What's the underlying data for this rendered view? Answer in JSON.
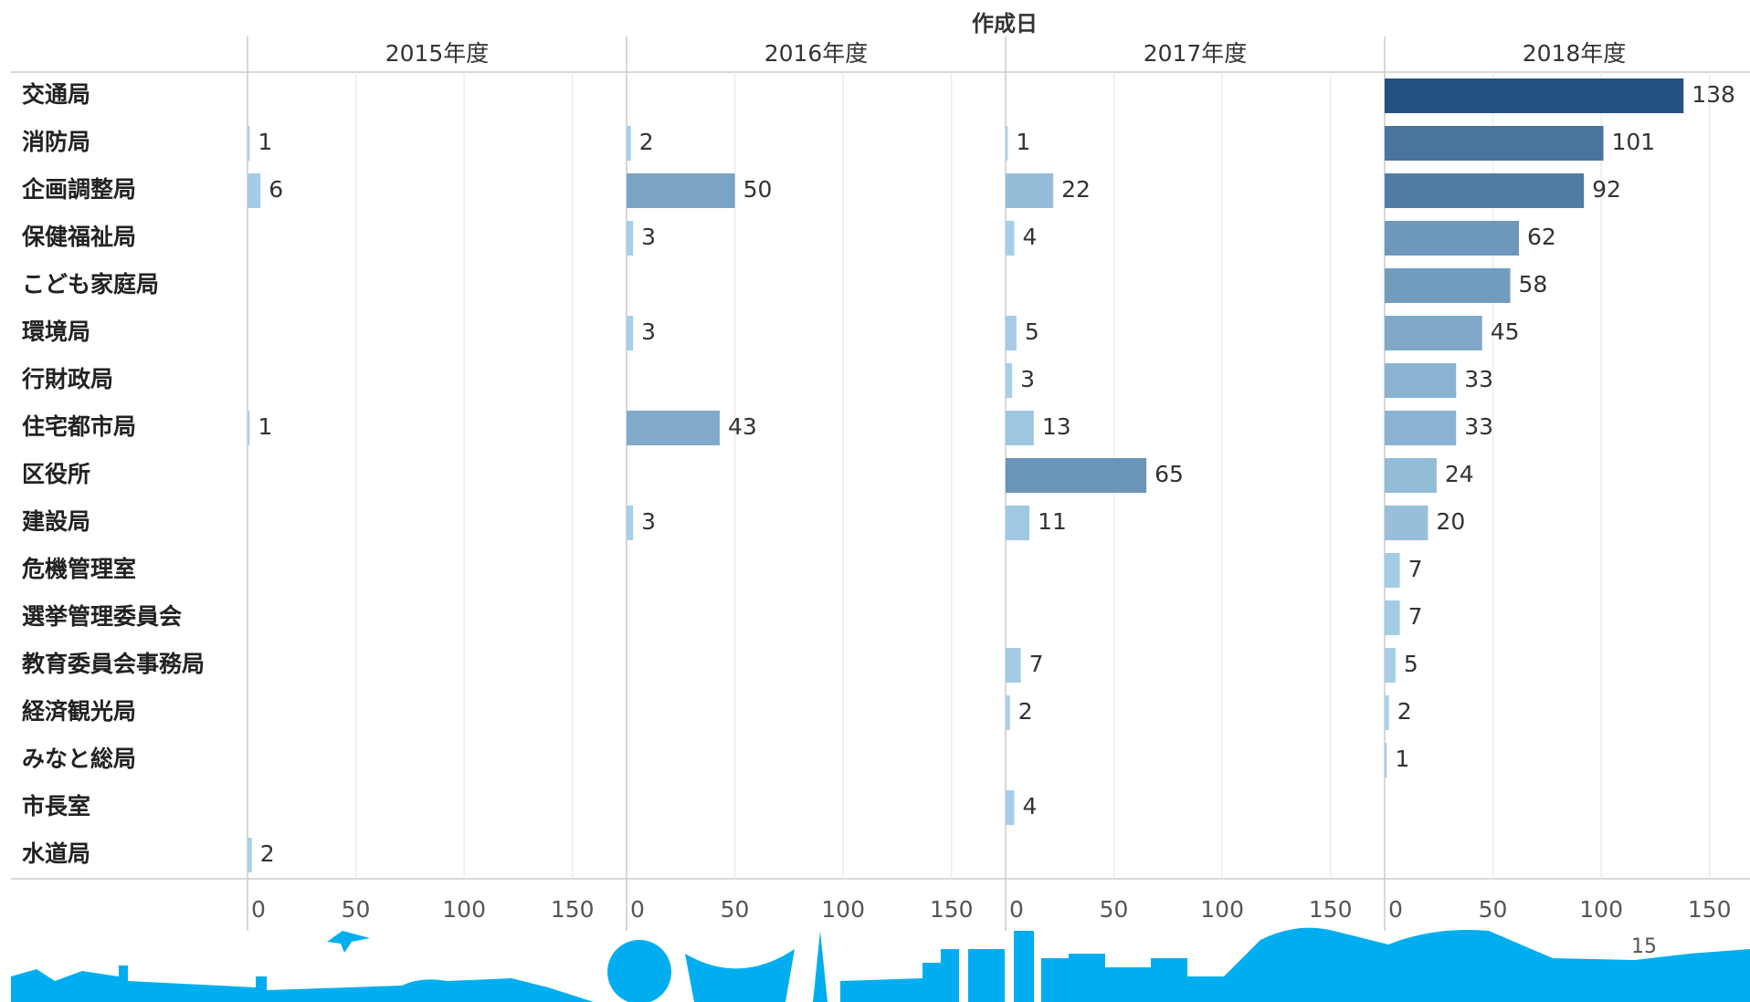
{
  "chart_data": {
    "type": "bar",
    "orientation": "horizontal",
    "title": "作成日",
    "categories": [
      "交通局",
      "消防局",
      "企画調整局",
      "保健福祉局",
      "こども家庭局",
      "環境局",
      "行財政局",
      "住宅都市局",
      "区役所",
      "建設局",
      "危機管理室",
      "選挙管理委員会",
      "教育委員会事務局",
      "経済観光局",
      "みなと総局",
      "市長室",
      "水道局"
    ],
    "series": [
      {
        "name": "2015年度",
        "values": [
          null,
          1,
          6,
          null,
          null,
          null,
          null,
          1,
          null,
          null,
          null,
          null,
          null,
          null,
          null,
          null,
          2
        ]
      },
      {
        "name": "2016年度",
        "values": [
          null,
          2,
          50,
          3,
          null,
          3,
          null,
          43,
          null,
          3,
          null,
          null,
          null,
          null,
          null,
          null,
          null
        ]
      },
      {
        "name": "2017年度",
        "values": [
          null,
          1,
          22,
          4,
          null,
          5,
          3,
          13,
          65,
          11,
          null,
          null,
          7,
          2,
          null,
          4,
          null
        ]
      },
      {
        "name": "2018年度",
        "values": [
          138,
          101,
          92,
          62,
          58,
          45,
          33,
          33,
          24,
          20,
          7,
          7,
          5,
          2,
          1,
          null,
          null
        ]
      }
    ],
    "color_scale": [
      "#a9d1ea",
      "#255180"
    ],
    "xlim": [
      0,
      175
    ],
    "xticks": [
      0,
      50,
      100,
      150
    ],
    "grid": true,
    "page_number": "15"
  }
}
